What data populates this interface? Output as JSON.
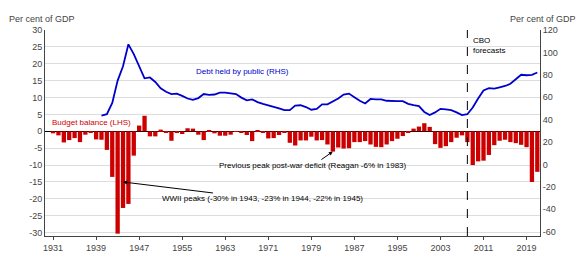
{
  "chart_data": {
    "type": "bar",
    "ylabel": "Per cent of GDP",
    "y2label": "Per cent of GDP",
    "xlim": [
      1929.5,
      2021.5
    ],
    "xticks": [
      1931,
      1939,
      1947,
      1955,
      1963,
      1971,
      1979,
      1987,
      1995,
      2003,
      2011,
      2019
    ],
    "ylim": [
      -31,
      30
    ],
    "yticks": [
      -30,
      -25,
      -20,
      -15,
      -10,
      -5,
      0,
      5,
      10,
      15,
      20,
      25,
      30
    ],
    "y2lim": [
      -64,
      120
    ],
    "y2ticks": [
      -60,
      -40,
      -20,
      0,
      20,
      40,
      60,
      80,
      100,
      120
    ],
    "grid": true,
    "series": [
      {
        "name": "Budget balance (LHS)",
        "type": "bar",
        "color": "#cc0000",
        "x": [
          1931,
          1932,
          1933,
          1934,
          1935,
          1936,
          1937,
          1938,
          1939,
          1940,
          1941,
          1942,
          1943,
          1944,
          1945,
          1946,
          1947,
          1948,
          1949,
          1950,
          1951,
          1952,
          1953,
          1954,
          1955,
          1956,
          1957,
          1958,
          1959,
          1960,
          1961,
          1962,
          1963,
          1964,
          1965,
          1966,
          1967,
          1968,
          1969,
          1970,
          1971,
          1972,
          1973,
          1974,
          1975,
          1976,
          1977,
          1978,
          1979,
          1980,
          1981,
          1982,
          1983,
          1984,
          1985,
          1986,
          1987,
          1988,
          1989,
          1990,
          1991,
          1992,
          1993,
          1994,
          1995,
          1996,
          1997,
          1998,
          1999,
          2000,
          2001,
          2002,
          2003,
          2004,
          2005,
          2006,
          2007,
          2008,
          2009,
          2010,
          2011,
          2012,
          2013,
          2014,
          2015,
          2016,
          2017,
          2018,
          2019,
          2020,
          2021
        ],
        "values": [
          -0.6,
          -1.2,
          -3.3,
          -2.6,
          -2.0,
          -3.2,
          -1.0,
          -0.5,
          -2.4,
          -2.5,
          -5.5,
          -13.5,
          -30.3,
          -22.7,
          -21.5,
          -7.2,
          1.7,
          4.6,
          -1.5,
          -1.5,
          0.5,
          -0.4,
          -2.8,
          -0.3,
          -0.8,
          0.9,
          0.8,
          -1.0,
          -2.6,
          0.1,
          -0.6,
          -1.3,
          -1.3,
          -1.0,
          -0.2,
          -0.5,
          -1.1,
          -2.9,
          0.3,
          -0.3,
          -2.1,
          -2.0,
          -1.1,
          -0.4,
          -3.4,
          -4.2,
          -2.7,
          -2.7,
          -1.6,
          -2.7,
          -2.6,
          -3.9,
          -6.0,
          -4.8,
          -5.1,
          -5.0,
          -3.2,
          -3.2,
          -2.9,
          -3.9,
          -4.6,
          -4.7,
          -3.9,
          -2.9,
          -2.2,
          -1.4,
          -0.3,
          0.8,
          1.4,
          2.4,
          1.3,
          -3.8,
          -4.9,
          -4.4,
          -3.2,
          -1.9,
          -1.2,
          -3.2,
          -10.0,
          -8.9,
          -8.7,
          -7.0,
          -4.1,
          -2.8,
          -2.5,
          -3.2,
          -3.5,
          -4.0,
          -4.7,
          -15.0,
          -12.0
        ]
      },
      {
        "name": "Debt held by public (RHS)",
        "type": "line",
        "axis": "y2",
        "color": "#0000cc",
        "x": [
          1940,
          1941,
          1942,
          1943,
          1944,
          1945,
          1946,
          1947,
          1948,
          1949,
          1950,
          1951,
          1952,
          1953,
          1954,
          1955,
          1956,
          1957,
          1958,
          1959,
          1960,
          1961,
          1962,
          1963,
          1964,
          1965,
          1966,
          1967,
          1968,
          1969,
          1970,
          1971,
          1972,
          1973,
          1974,
          1975,
          1976,
          1977,
          1978,
          1979,
          1980,
          1981,
          1982,
          1983,
          1984,
          1985,
          1986,
          1987,
          1988,
          1989,
          1990,
          1991,
          1992,
          1993,
          1994,
          1995,
          1996,
          1997,
          1998,
          1999,
          2000,
          2001,
          2002,
          2003,
          2004,
          2005,
          2006,
          2007,
          2008,
          2009,
          2010,
          2011,
          2012,
          2013,
          2014,
          2015,
          2016,
          2017,
          2018,
          2019,
          2020,
          2021
        ],
        "values": [
          43.6,
          44.8,
          54.8,
          74.8,
          87.6,
          107.2,
          98.4,
          88.0,
          76.8,
          77.6,
          73.6,
          68.0,
          64.8,
          62.8,
          63.2,
          61.2,
          58.8,
          57.6,
          59.2,
          62.8,
          62.0,
          62.4,
          64.0,
          64.0,
          63.2,
          62.8,
          59.6,
          57.2,
          58.0,
          55.6,
          54.0,
          52.8,
          51.6,
          50.0,
          48.4,
          48.4,
          52.4,
          52.8,
          51.2,
          48.8,
          49.6,
          53.6,
          53.6,
          56.4,
          58.8,
          62.4,
          63.2,
          60.0,
          56.8,
          54.4,
          58.4,
          58.0,
          58.0,
          56.8,
          56.4,
          56.4,
          56.4,
          54.0,
          52.8,
          52.0,
          46.8,
          44.0,
          46.4,
          49.6,
          49.2,
          48.4,
          46.4,
          44.0,
          44.8,
          50.8,
          58.8,
          66.0,
          68.0,
          67.6,
          68.8,
          70.0,
          72.0,
          76.0,
          80.0,
          79.6,
          80.0,
          82.0
        ]
      }
    ],
    "vline": {
      "x": 2008,
      "line_style": "dashed",
      "label": "CBO\nforecasts"
    },
    "annotations": [
      {
        "text": "Previous peak post-war deficit (Reagan -6% in 1983)",
        "x": 1983,
        "y": -6.0
      },
      {
        "text": "WWII peaks (-30% in 1943, -23% in 1944, -22% in 1945)",
        "x": 1944,
        "y": -15.0
      }
    ]
  }
}
